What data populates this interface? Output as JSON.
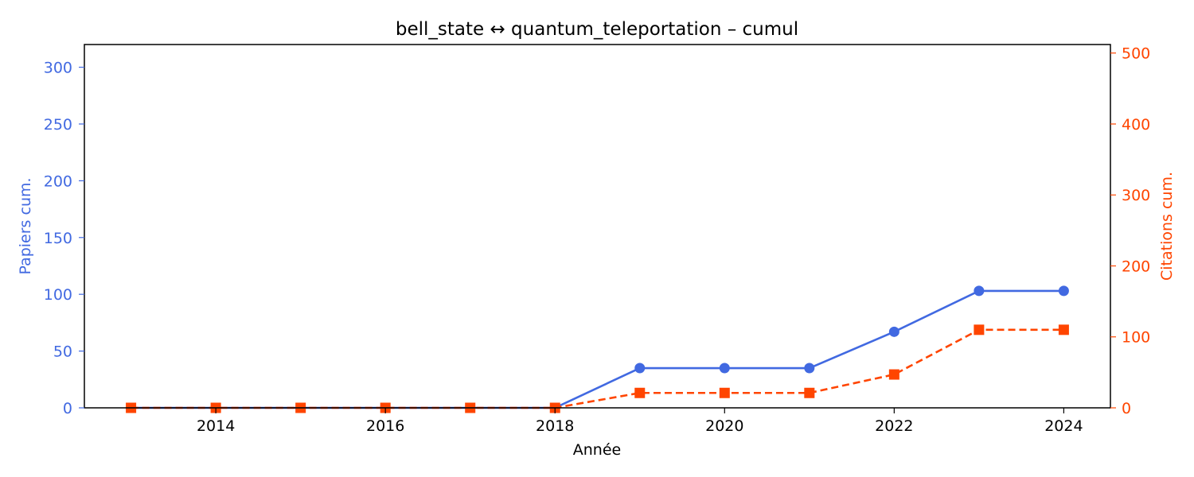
{
  "chart_data": {
    "type": "line",
    "title": "bell_state  ↔  quantum_teleportation  –  cumul",
    "xlabel": "Année",
    "ylabel_left": "Papiers cum.",
    "ylabel_right": "Citations cum.",
    "x": [
      2013,
      2014,
      2015,
      2016,
      2017,
      2018,
      2019,
      2020,
      2021,
      2022,
      2023,
      2024
    ],
    "xlim": [
      2012.45,
      2024.55
    ],
    "x_ticks": [
      2014,
      2016,
      2018,
      2020,
      2022,
      2024
    ],
    "y_left_lim": [
      0,
      320
    ],
    "y_left_ticks": [
      0,
      50,
      100,
      150,
      200,
      250,
      300
    ],
    "y_right_lim": [
      0,
      512
    ],
    "y_right_ticks": [
      0,
      100,
      200,
      300,
      400,
      500
    ],
    "grid": false,
    "series": [
      {
        "axis": "left",
        "color": "#4169e1",
        "marker": "circle",
        "linestyle": "solid",
        "values": [
          0,
          0,
          0,
          0,
          0,
          0,
          35,
          35,
          35,
          67,
          103,
          103
        ]
      },
      {
        "axis": "right",
        "color": "#ff4500",
        "marker": "square",
        "linestyle": "dashed",
        "values": [
          0,
          0,
          0,
          0,
          0,
          0,
          21,
          21,
          21,
          47,
          110,
          110
        ]
      }
    ]
  }
}
